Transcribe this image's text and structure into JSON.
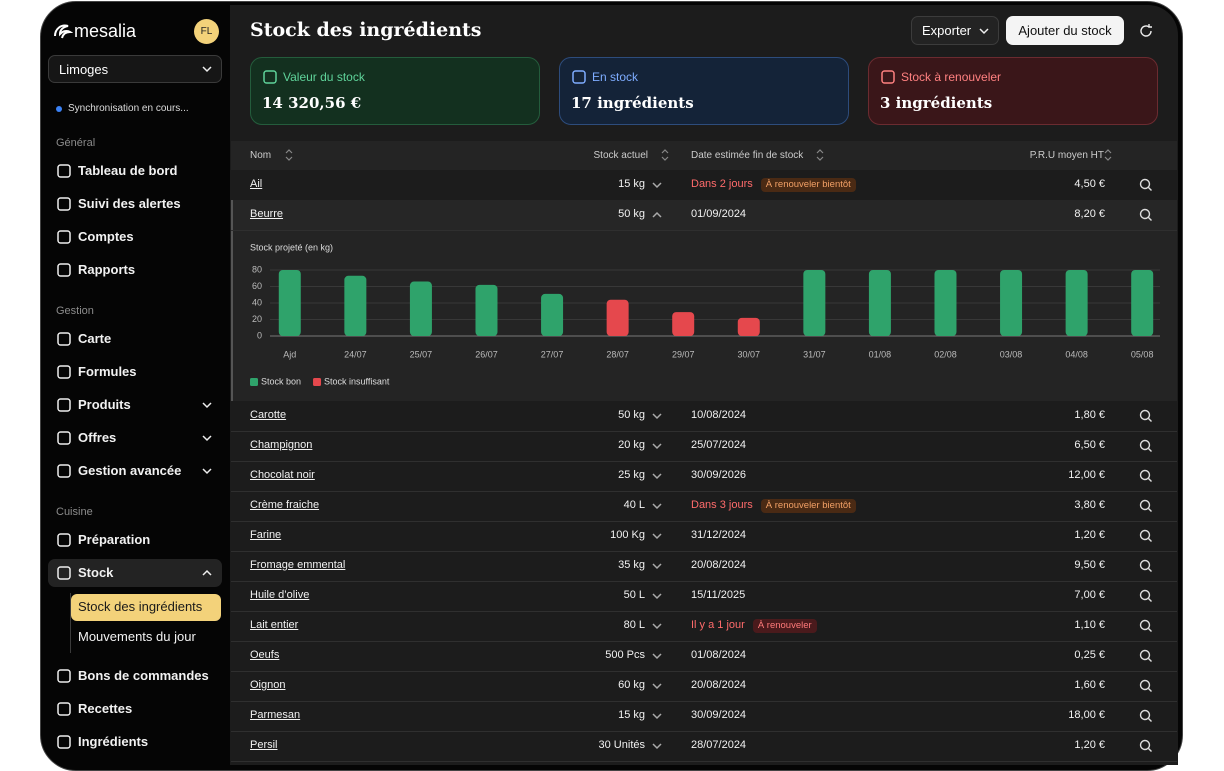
{
  "sidebar": {
    "logo": "mesalia",
    "avatar": "FL",
    "location": "Limoges",
    "sync_status": "Synchronisation en cours...",
    "sections": [
      {
        "title": "Général",
        "items": [
          {
            "label": "Tableau de bord"
          },
          {
            "label": "Suivi des alertes"
          },
          {
            "label": "Comptes"
          },
          {
            "label": "Rapports"
          }
        ]
      },
      {
        "title": "Gestion",
        "items": [
          {
            "label": "Carte"
          },
          {
            "label": "Formules"
          },
          {
            "label": "Produits",
            "expandable": true
          },
          {
            "label": "Offres",
            "expandable": true
          },
          {
            "label": "Gestion avancée",
            "expandable": true
          }
        ]
      },
      {
        "title": "Cuisine",
        "items": [
          {
            "label": "Préparation"
          },
          {
            "label": "Stock",
            "expandable": true,
            "open": true,
            "children": [
              {
                "label": "Stock des ingrédients",
                "active": true
              },
              {
                "label": "Mouvements du jour"
              }
            ]
          },
          {
            "label": "Bons de commandes"
          },
          {
            "label": "Recettes"
          },
          {
            "label": "Ingrédients"
          }
        ]
      }
    ]
  },
  "header": {
    "title": "Stock des ingrédients",
    "export": "Exporter",
    "add": "Ajouter du stock"
  },
  "cards": [
    {
      "label": "Valeur du stock",
      "value": "14 320,56 €",
      "tone": "green"
    },
    {
      "label": "En stock",
      "value": "17 ingrédients",
      "tone": "blue"
    },
    {
      "label": "Stock à renouveler",
      "value": "3 ingrédients",
      "tone": "red"
    }
  ],
  "table": {
    "columns": [
      "Nom",
      "Stock actuel",
      "Date estimée fin de stock",
      "P.R.U moyen HT"
    ],
    "rows": [
      {
        "name": "Ail",
        "stock": "15 kg",
        "date": "Dans 2 jours",
        "badge": "À renouveler bientôt",
        "badge_tone": "warning",
        "price": "4,50 €"
      },
      {
        "name": "Beurre",
        "stock": "50 kg",
        "date": "01/09/2024",
        "price": "8,20 €",
        "expanded": true
      },
      {
        "name": "Carotte",
        "stock": "50 kg",
        "date": "10/08/2024",
        "price": "1,80 €"
      },
      {
        "name": "Champignon",
        "stock": "20 kg",
        "date": "25/07/2024",
        "price": "6,50 €"
      },
      {
        "name": "Chocolat noir",
        "stock": "25 kg",
        "date": "30/09/2026",
        "price": "12,00 €"
      },
      {
        "name": "Crème fraiche",
        "stock": "40 L",
        "date": "Dans 3 jours",
        "badge": "À renouveler bientôt",
        "badge_tone": "warning",
        "price": "3,80 €"
      },
      {
        "name": "Farine",
        "stock": "100 Kg",
        "date": "31/12/2024",
        "price": "1,20 €"
      },
      {
        "name": "Fromage emmental",
        "stock": "35 kg",
        "date": "20/08/2024",
        "price": "9,50 €"
      },
      {
        "name": "Huile d’olive",
        "stock": "50 L",
        "date": "15/11/2025",
        "price": "7,00 €"
      },
      {
        "name": "Lait entier",
        "stock": "80 L",
        "date": "Il y a 1 jour",
        "badge": "À renouveler",
        "badge_tone": "danger",
        "price": "1,10 €"
      },
      {
        "name": "Oeufs",
        "stock": "500 Pcs",
        "date": "01/08/2024",
        "price": "0,25 €"
      },
      {
        "name": "Oignon",
        "stock": "60 kg",
        "date": "20/08/2024",
        "price": "1,60 €"
      },
      {
        "name": "Parmesan",
        "stock": "15 kg",
        "date": "30/09/2024",
        "price": "18,00 €"
      },
      {
        "name": "Persil",
        "stock": "30 Unités",
        "date": "28/07/2024",
        "price": "1,20 €"
      }
    ]
  },
  "chart_data": {
    "type": "bar",
    "title": "Stock projeté (en kg)",
    "categories": [
      "Ajd",
      "24/07",
      "25/07",
      "26/07",
      "27/07",
      "28/07",
      "29/07",
      "30/07",
      "31/07",
      "01/08",
      "02/08",
      "03/08",
      "04/08",
      "05/08"
    ],
    "series": [
      {
        "name": "Stock bon",
        "color": "#2fa36b",
        "values": [
          80,
          73,
          66,
          62,
          51,
          null,
          null,
          null,
          80,
          80,
          80,
          80,
          80,
          80
        ]
      },
      {
        "name": "Stock insuffisant",
        "color": "#e5484d",
        "values": [
          null,
          null,
          null,
          null,
          null,
          44,
          29,
          22,
          null,
          null,
          null,
          null,
          null,
          null
        ]
      }
    ],
    "ylim": [
      0,
      80
    ],
    "yticks": [
      0,
      20,
      40,
      60,
      80
    ],
    "grid": true,
    "legend": "bottom-left"
  }
}
